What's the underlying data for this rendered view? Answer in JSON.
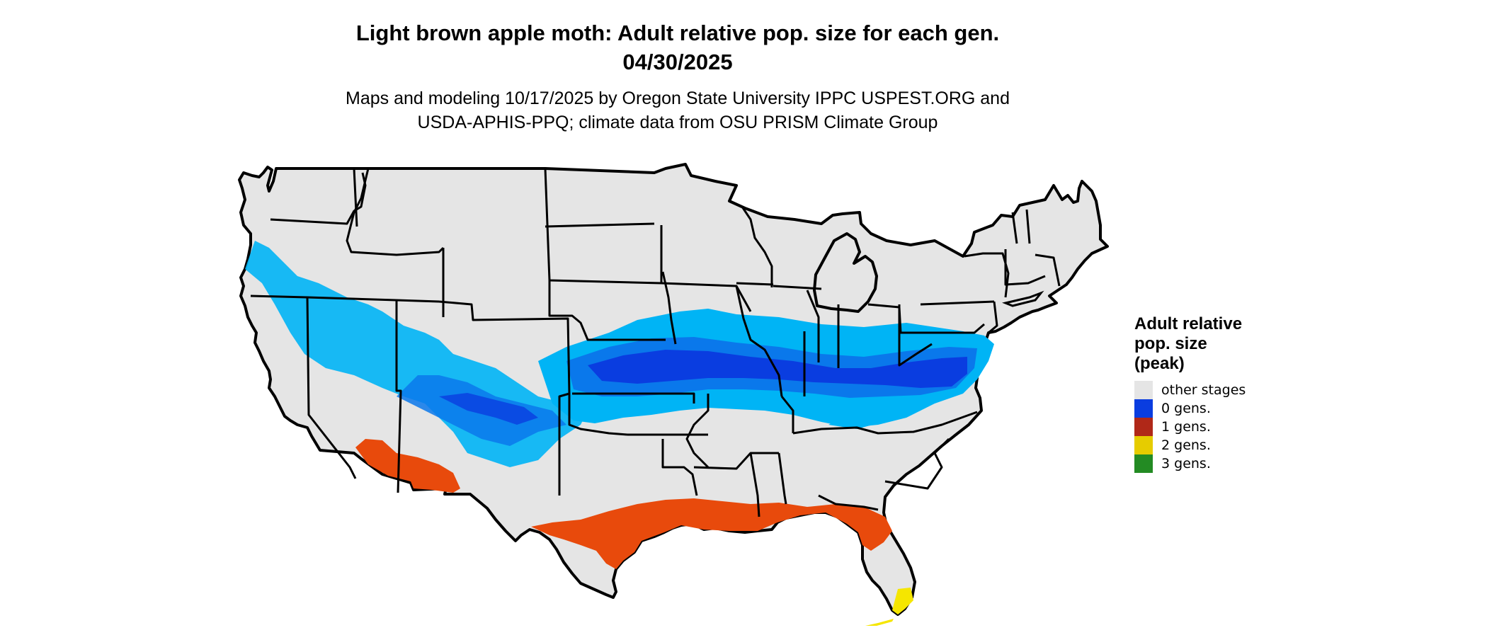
{
  "title_line1": "Light brown apple moth: Adult relative pop. size for each gen.",
  "title_line2": "04/30/2025",
  "subtitle_line1": "Maps and modeling 10/17/2025 by Oregon State University IPPC USPEST.ORG and",
  "subtitle_line2": "USDA-APHIS-PPQ; climate data from OSU PRISM Climate Group",
  "legend": {
    "title": "Adult relative\npop. size\n(peak)",
    "items": [
      {
        "label": "other stages",
        "color": "#e5e5e5"
      },
      {
        "label": "0 gens.",
        "color": "#0a3de0"
      },
      {
        "label": "1 gens.",
        "color": "#b02818"
      },
      {
        "label": "2 gens.",
        "color": "#e6cc00"
      },
      {
        "label": "3 gens.",
        "color": "#238b23"
      }
    ]
  },
  "colors": {
    "background": "#ffffff",
    "land": "#e5e5e5",
    "border": "#000000",
    "light_blue": "#00b4f5",
    "mid_blue": "#0a78eb",
    "dark_blue": "#0a3de0",
    "orange_red": "#e84a0c",
    "yellow": "#f5e600"
  }
}
